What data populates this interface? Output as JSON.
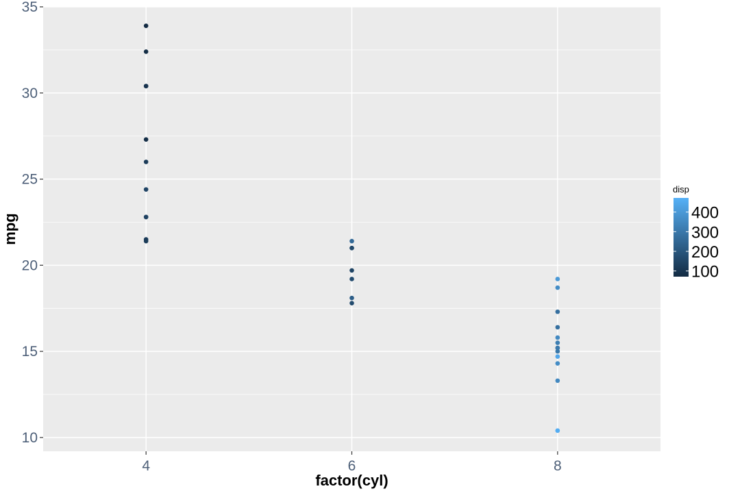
{
  "chart_data": {
    "type": "scatter",
    "title": "",
    "xlabel": "factor(cyl)",
    "ylabel": "mpg",
    "x_categories": [
      "4",
      "6",
      "8"
    ],
    "x_range": [
      3,
      9
    ],
    "ylim": [
      9.2,
      35
    ],
    "y_ticks": [
      10,
      15,
      20,
      25,
      30,
      35
    ],
    "grid": true,
    "colors": {
      "panel_background": "#ebebeb",
      "grid": "#ffffff",
      "tick_label": "#4d5f78",
      "low": "#132b43",
      "high": "#56b1f7"
    },
    "legend": {
      "title": "disp",
      "placement": "right",
      "ticks": [
        100,
        200,
        300,
        400
      ],
      "range": [
        71.1,
        472
      ]
    },
    "points": [
      {
        "x": 4,
        "y": 22.8,
        "disp": 108
      },
      {
        "x": 4,
        "y": 24.4,
        "disp": 146.7
      },
      {
        "x": 4,
        "y": 22.8,
        "disp": 140.8
      },
      {
        "x": 4,
        "y": 32.4,
        "disp": 78.7
      },
      {
        "x": 4,
        "y": 30.4,
        "disp": 75.7
      },
      {
        "x": 4,
        "y": 33.9,
        "disp": 71.1
      },
      {
        "x": 4,
        "y": 21.5,
        "disp": 120.1
      },
      {
        "x": 4,
        "y": 27.3,
        "disp": 79
      },
      {
        "x": 4,
        "y": 26.0,
        "disp": 120.3
      },
      {
        "x": 4,
        "y": 30.4,
        "disp": 95.1
      },
      {
        "x": 4,
        "y": 21.4,
        "disp": 121
      },
      {
        "x": 6,
        "y": 21.0,
        "disp": 160
      },
      {
        "x": 6,
        "y": 21.0,
        "disp": 160
      },
      {
        "x": 6,
        "y": 21.4,
        "disp": 258
      },
      {
        "x": 6,
        "y": 18.1,
        "disp": 225
      },
      {
        "x": 6,
        "y": 19.2,
        "disp": 167.6
      },
      {
        "x": 6,
        "y": 17.8,
        "disp": 167.6
      },
      {
        "x": 6,
        "y": 19.7,
        "disp": 145
      },
      {
        "x": 8,
        "y": 18.7,
        "disp": 360
      },
      {
        "x": 8,
        "y": 14.3,
        "disp": 360
      },
      {
        "x": 8,
        "y": 16.4,
        "disp": 275.8
      },
      {
        "x": 8,
        "y": 17.3,
        "disp": 275.8
      },
      {
        "x": 8,
        "y": 15.2,
        "disp": 275.8
      },
      {
        "x": 8,
        "y": 10.4,
        "disp": 472
      },
      {
        "x": 8,
        "y": 10.4,
        "disp": 460
      },
      {
        "x": 8,
        "y": 14.7,
        "disp": 440
      },
      {
        "x": 8,
        "y": 15.5,
        "disp": 318
      },
      {
        "x": 8,
        "y": 15.2,
        "disp": 304
      },
      {
        "x": 8,
        "y": 13.3,
        "disp": 350
      },
      {
        "x": 8,
        "y": 19.2,
        "disp": 400
      },
      {
        "x": 8,
        "y": 15.8,
        "disp": 351
      },
      {
        "x": 8,
        "y": 15.0,
        "disp": 301
      }
    ]
  }
}
